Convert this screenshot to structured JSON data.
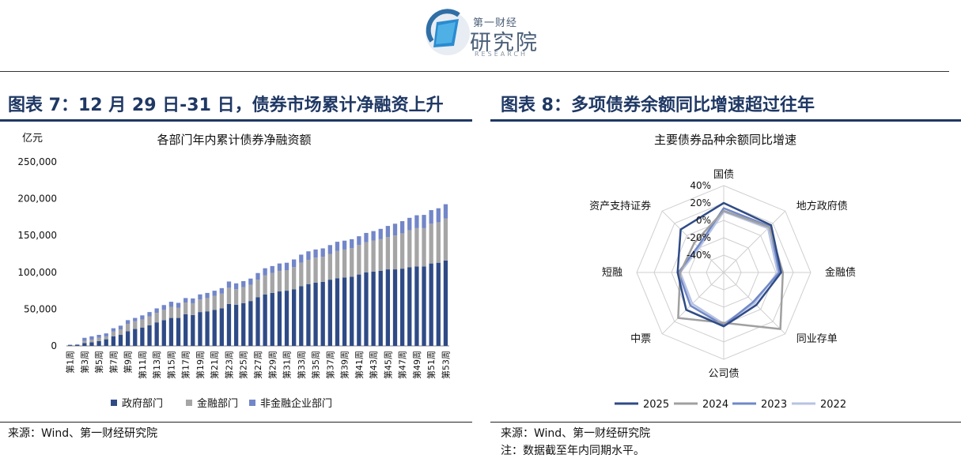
{
  "logo": {
    "top_text": "第一财经",
    "main_text": "研究院",
    "sub_text": "RESEARCH"
  },
  "left_panel": {
    "figure_title": "图表 7：12 月 29 日-31 日，债券市场累计净融资上升",
    "source": "来源：Wind、第一财经研究院"
  },
  "right_panel": {
    "figure_title": "图表 8：多项债券余额同比增速超过往年",
    "source": "来源：Wind、第一财经研究院",
    "note": "注：数据截至年内同期水平。"
  },
  "colors": {
    "navy": "#2f4b86",
    "gray": "#a5a5a5",
    "periwinkle": "#7286c8",
    "s2025": "#2f4b86",
    "s2024": "#a0a0a0",
    "s2023": "#7088c8",
    "s2022": "#b7c3e3"
  },
  "chart_data": [
    {
      "type": "bar",
      "stacked": true,
      "title": "各部门年内累计债券净融资额",
      "ylabel": "亿元",
      "ylim": [
        0,
        250000
      ],
      "yticks": [
        "0",
        "50,000",
        "100,000",
        "150,000",
        "200,000",
        "250,000"
      ],
      "categories": [
        "第1周",
        "第2周",
        "第3周",
        "第4周",
        "第5周",
        "第6周",
        "第7周",
        "第8周",
        "第9周",
        "第10周",
        "第11周",
        "第12周",
        "第13周",
        "第14周",
        "第15周",
        "第16周",
        "第17周",
        "第18周",
        "第19周",
        "第20周",
        "第21周",
        "第22周",
        "第23周",
        "第24周",
        "第25周",
        "第26周",
        "第27周",
        "第28周",
        "第29周",
        "第30周",
        "第31周",
        "第32周",
        "第33周",
        "第34周",
        "第35周",
        "第36周",
        "第37周",
        "第38周",
        "第39周",
        "第40周",
        "第41周",
        "第42周",
        "第43周",
        "第44周",
        "第45周",
        "第46周",
        "第47周",
        "第48周",
        "第49周",
        "第50周",
        "第51周",
        "第52周",
        "第53周"
      ],
      "tick_labels": [
        "第1周",
        "第3周",
        "第5周",
        "第7周",
        "第9周",
        "第11周",
        "第13周",
        "第15周",
        "第17周",
        "第19周",
        "第21周",
        "第23周",
        "第25周",
        "第27周",
        "第29周",
        "第31周",
        "第33周",
        "第35周",
        "第37周",
        "第39周",
        "第41周",
        "第43周",
        "第45周",
        "第47周",
        "第49周",
        "第51周",
        "第53周"
      ],
      "series": [
        {
          "name": "政府部门",
          "values": [
            1000,
            1500,
            4000,
            5000,
            6500,
            9000,
            13000,
            15000,
            20000,
            23000,
            25000,
            28000,
            32000,
            35000,
            38000,
            38000,
            43000,
            42000,
            46000,
            47000,
            49000,
            51000,
            57000,
            56000,
            58000,
            61000,
            66000,
            70000,
            72000,
            74000,
            75000,
            77000,
            81000,
            84000,
            86000,
            87000,
            90000,
            92000,
            93000,
            94000,
            97000,
            100000,
            101000,
            102000,
            104000,
            104000,
            105000,
            107000,
            108000,
            108000,
            112000,
            113000,
            116000
          ]
        },
        {
          "name": "金融部门",
          "values": [
            500,
            500,
            3000,
            3500,
            4500,
            4000,
            6500,
            7500,
            10000,
            10500,
            11000,
            12000,
            13000,
            14000,
            15000,
            14000,
            16000,
            16000,
            17000,
            18000,
            19000,
            20000,
            22000,
            21000,
            22000,
            22000,
            24000,
            26000,
            27000,
            28000,
            28000,
            30000,
            32000,
            33000,
            34000,
            34000,
            35000,
            37000,
            38000,
            39000,
            40000,
            41000,
            42000,
            43000,
            44000,
            46000,
            48000,
            50000,
            52000,
            52000,
            54000,
            55000,
            57000
          ]
        },
        {
          "name": "非金融企业部门",
          "values": [
            300,
            300,
            4000,
            4500,
            4000,
            4000,
            4500,
            5000,
            5000,
            4500,
            5500,
            6000,
            6000,
            6500,
            7000,
            6500,
            6000,
            6500,
            7000,
            7000,
            7000,
            7500,
            8500,
            8000,
            8000,
            8500,
            9000,
            9500,
            9500,
            10000,
            10000,
            10500,
            11000,
            11500,
            11000,
            11500,
            12000,
            12500,
            12000,
            12000,
            12000,
            12500,
            13000,
            14000,
            15000,
            16000,
            16500,
            17000,
            17500,
            18000,
            18500,
            19000,
            19500
          ]
        }
      ],
      "legend_position": "bottom"
    },
    {
      "type": "radar",
      "title": "主要债券品种余额同比增速",
      "axes": [
        "国债",
        "地方政府债",
        "金融债",
        "同业存单",
        "公司债",
        "中票",
        "短融",
        "资产支持证券"
      ],
      "rlim": [
        -60,
        40
      ],
      "ring_labels": [
        "40%",
        "20%",
        "0%",
        "-20%",
        "-40%"
      ],
      "series": [
        {
          "name": "2025",
          "values": [
            20,
            17,
            6,
            -7,
            2,
            1,
            -7,
            10
          ]
        },
        {
          "name": "2024",
          "values": [
            11,
            14,
            8,
            32,
            -2,
            14,
            -10,
            -12
          ]
        },
        {
          "name": "2023",
          "values": [
            14,
            15,
            4,
            -12,
            1,
            -6,
            -8,
            -18
          ]
        },
        {
          "name": "2022",
          "values": [
            10,
            12,
            2,
            -10,
            -1,
            -9,
            -10,
            -20
          ]
        }
      ],
      "legend_position": "bottom"
    }
  ]
}
